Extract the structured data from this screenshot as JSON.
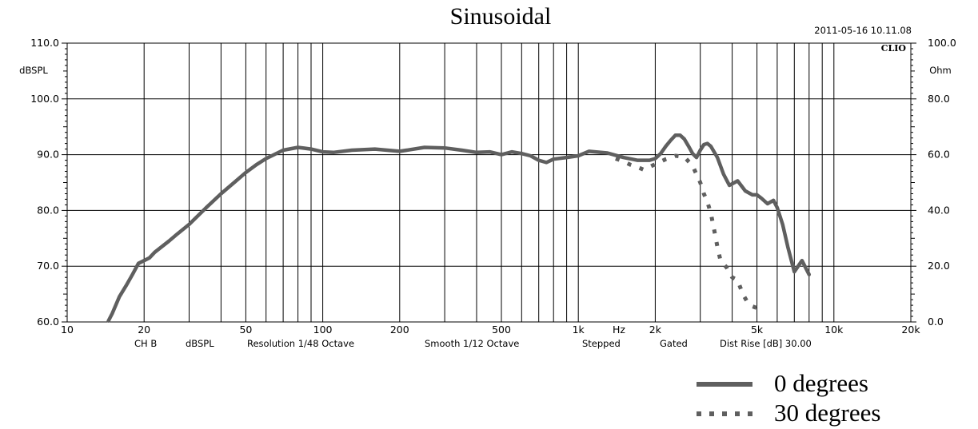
{
  "chart_data": {
    "type": "line",
    "title": "Sinusoidal",
    "timestamp": "2011-05-16 10.11.08",
    "logo": "CLIO",
    "x_scale": "log",
    "xlim": [
      10,
      20000
    ],
    "ylim": [
      60,
      110
    ],
    "y2lim": [
      0,
      100
    ],
    "ylabel": "dBSPL",
    "y2label": "Ohm",
    "xlabel": "Hz",
    "x_major_ticks": [
      10,
      20,
      50,
      100,
      200,
      500,
      1000,
      2000,
      5000,
      10000,
      20000
    ],
    "x_tick_labels": [
      "10",
      "20",
      "50",
      "100",
      "200",
      "500",
      "1k",
      "2k",
      "5k",
      "10k",
      "20k"
    ],
    "x_gridlines": [
      20,
      30,
      40,
      50,
      60,
      70,
      80,
      90,
      100,
      200,
      300,
      400,
      500,
      600,
      700,
      800,
      900,
      1000,
      2000,
      3000,
      4000,
      5000,
      6000,
      7000,
      8000,
      9000,
      10000,
      20000
    ],
    "y_ticks": [
      60,
      70,
      80,
      90,
      100,
      110
    ],
    "y_tick_labels": [
      "60.0",
      "70.0",
      "80.0",
      "90.0",
      "100.0",
      "110.0"
    ],
    "y2_tick_labels": [
      "0.0",
      "20.0",
      "40.0",
      "60.0",
      "80.0",
      "100.0"
    ],
    "settings": [
      "CH B",
      "dBSPL",
      "Resolution 1/48 Octave",
      "Smooth 1/12 Octave",
      "Stepped",
      "Gated",
      "Dist Rise [dB] 30.00"
    ],
    "series": [
      {
        "name": "0 degrees",
        "style": "solid",
        "color": "#5f5f5f",
        "x": [
          14.5,
          15,
          16,
          17,
          18,
          19,
          20,
          21,
          22,
          25,
          27,
          30,
          35,
          40,
          45,
          50,
          55,
          60,
          70,
          80,
          90,
          100,
          110,
          130,
          160,
          200,
          250,
          300,
          350,
          400,
          450,
          500,
          550,
          600,
          650,
          700,
          750,
          800,
          900,
          1000,
          1100,
          1300,
          1500,
          1700,
          1900,
          2000,
          2100,
          2200,
          2300,
          2400,
          2500,
          2600,
          2700,
          2800,
          2900,
          3000,
          3100,
          3200,
          3300,
          3500,
          3700,
          3900,
          4200,
          4500,
          4800,
          5000,
          5200,
          5500,
          5800,
          6000,
          6300,
          6600,
          7000,
          7500,
          8000
        ],
        "values": [
          60.2,
          61.5,
          64.5,
          66.5,
          68.5,
          70.5,
          71.0,
          71.5,
          72.5,
          74.5,
          75.8,
          77.5,
          80.5,
          83.0,
          85.0,
          86.8,
          88.2,
          89.3,
          90.8,
          91.3,
          91.0,
          90.5,
          90.4,
          90.8,
          91.0,
          90.6,
          91.3,
          91.2,
          90.8,
          90.4,
          90.5,
          90.0,
          90.5,
          90.2,
          89.8,
          89.0,
          88.6,
          89.2,
          89.5,
          89.8,
          90.6,
          90.3,
          89.5,
          89.0,
          89.0,
          89.3,
          90.2,
          91.5,
          92.6,
          93.5,
          93.5,
          92.8,
          91.5,
          90.2,
          89.5,
          90.8,
          91.8,
          92.0,
          91.5,
          89.5,
          86.5,
          84.5,
          85.3,
          83.5,
          82.8,
          82.8,
          82.2,
          81.2,
          81.8,
          80.5,
          77.5,
          73.5,
          69.0,
          71.0,
          68.5
        ]
      },
      {
        "name": "30 degrees",
        "style": "dotted",
        "color": "#5f5f5f",
        "x": [
          1400,
          1500,
          1600,
          1700,
          1800,
          1900,
          2000,
          2200,
          2400,
          2600,
          2800,
          3000,
          3100,
          3200,
          3300,
          3400,
          3500,
          3600,
          3800,
          4000,
          4200,
          4400,
          4600,
          4800,
          5000
        ],
        "values": [
          89.3,
          88.8,
          88.2,
          87.8,
          87.3,
          87.8,
          88.3,
          89.2,
          89.8,
          89.6,
          88.0,
          85.0,
          83.0,
          81.5,
          79.5,
          76.5,
          73.5,
          71.0,
          69.8,
          68.0,
          67.5,
          65.0,
          63.5,
          62.8,
          62.5
        ]
      }
    ],
    "legend": {
      "placement": "bottom-right",
      "entries": [
        "0 degrees",
        "30 degrees"
      ]
    }
  }
}
